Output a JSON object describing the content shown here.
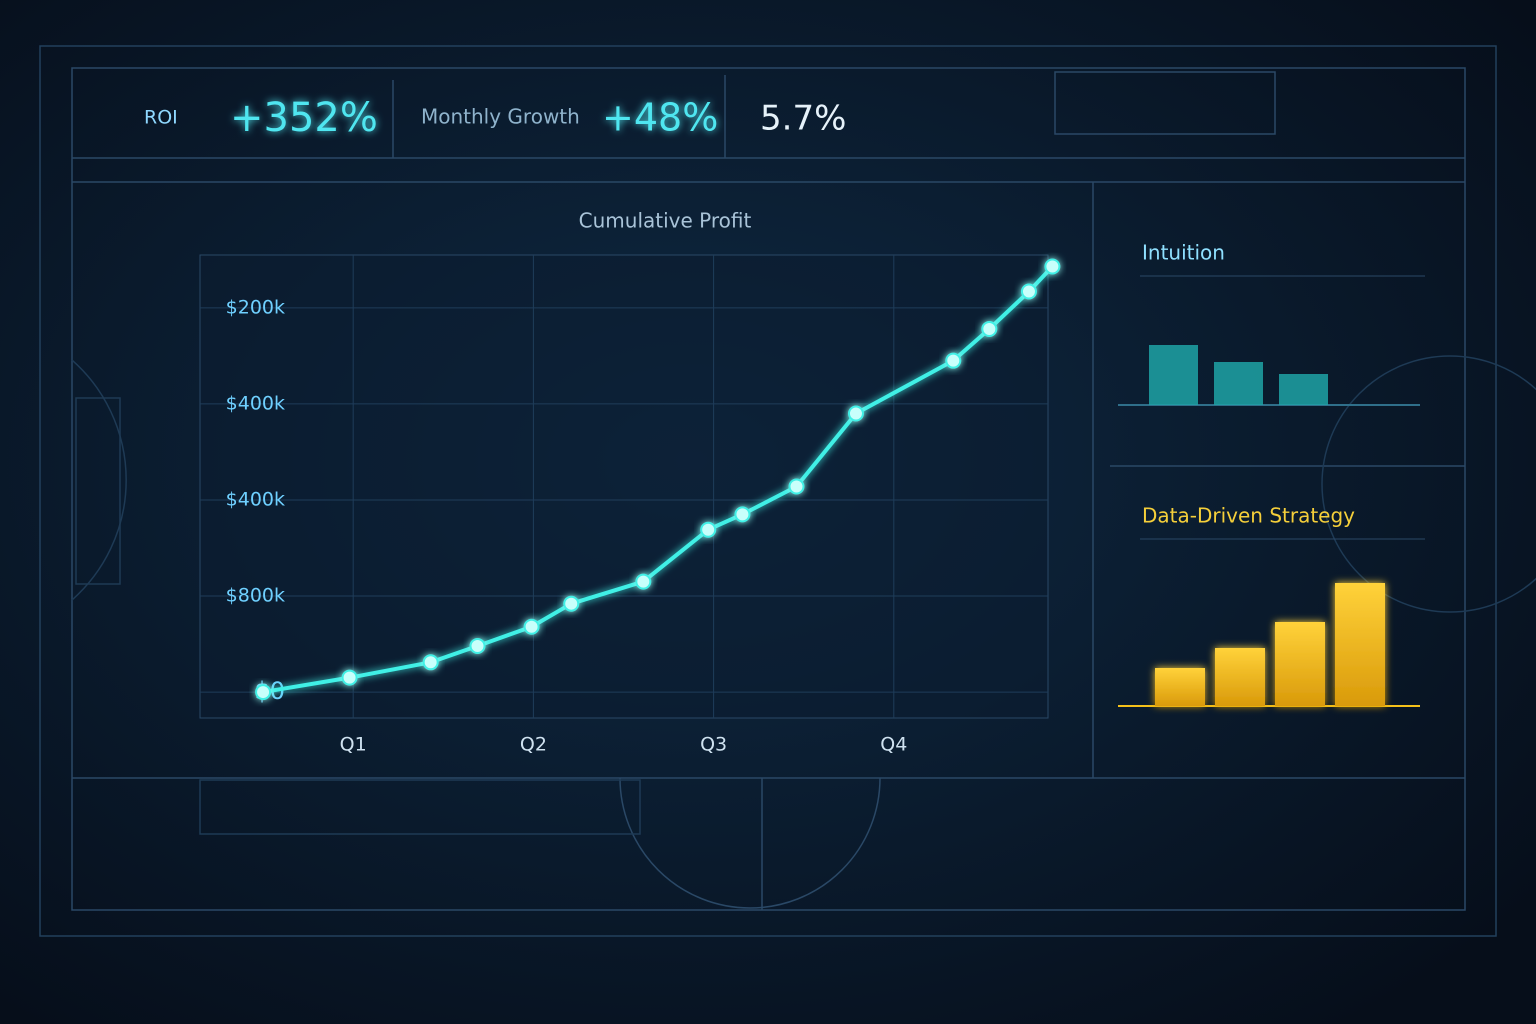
{
  "kpis": [
    {
      "label": "ROI",
      "value": "+352%"
    },
    {
      "label": "Monthly Growth",
      "value": "+48%"
    },
    {
      "value": "5.7%"
    }
  ],
  "chart_data": [
    {
      "type": "line",
      "title": "Cumulative Profit",
      "color": "#3ff0e6",
      "x": [
        0.5,
        0.98,
        1.43,
        1.69,
        1.99,
        2.21,
        2.61,
        2.97,
        3.16,
        3.46,
        3.79,
        4.33,
        4.53,
        4.75,
        4.88
      ],
      "values": [
        0,
        0.15,
        0.31,
        0.48,
        0.68,
        0.92,
        1.15,
        1.69,
        1.85,
        2.14,
        2.9,
        3.45,
        3.78,
        4.17,
        4.43
      ],
      "xlim": [
        0.15,
        4.9
      ],
      "xticks": [
        {
          "value": 1,
          "label": "Q1"
        },
        {
          "value": 2,
          "label": "Q2"
        },
        {
          "value": 3,
          "label": "Q3"
        },
        {
          "value": 4,
          "label": "Q4"
        }
      ],
      "ylim": [
        -0.27,
        4.55
      ],
      "yticks": [
        {
          "value": 0,
          "label": "$0"
        },
        {
          "value": 1,
          "label": "$800k"
        },
        {
          "value": 2,
          "label": "$400k"
        },
        {
          "value": 3,
          "label": "$400k"
        },
        {
          "value": 4,
          "label": "$200k"
        }
      ],
      "grid": true
    },
    {
      "type": "bar",
      "title": "Intuition",
      "color": "#1fa3a6",
      "values": [
        60,
        43,
        31
      ]
    },
    {
      "type": "bar",
      "title": "Data-Driven Strategy",
      "color": "#f5c11a",
      "values": [
        38,
        58,
        84,
        123
      ]
    }
  ]
}
